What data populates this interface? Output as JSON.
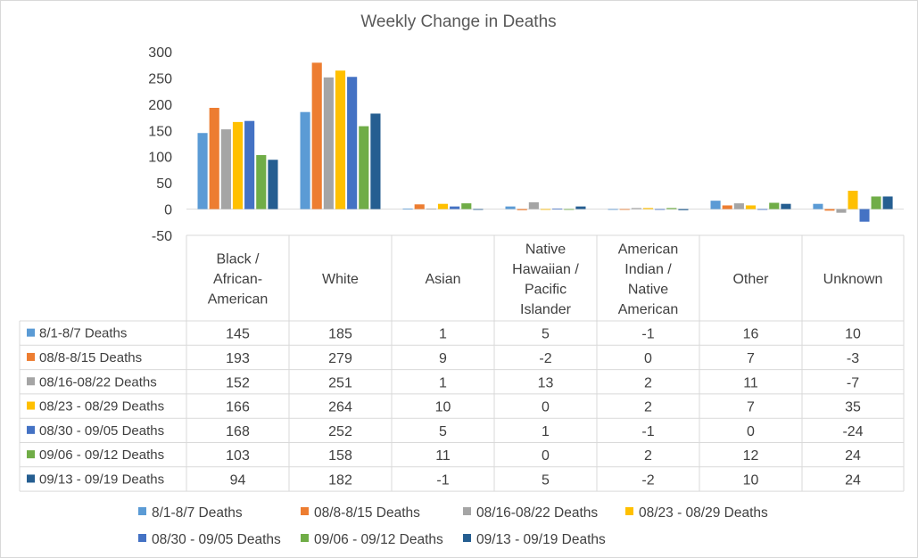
{
  "chart_data": {
    "type": "bar",
    "title": "Weekly Change in Deaths",
    "ylim": [
      -50,
      300
    ],
    "yticks": [
      -50,
      0,
      50,
      100,
      150,
      200,
      250,
      300
    ],
    "categories": [
      [
        "Black /",
        "African-",
        "American"
      ],
      [
        "White"
      ],
      [
        "Asian"
      ],
      [
        "Native",
        "Hawaiian /",
        "Pacific",
        "Islander"
      ],
      [
        "American",
        "Indian /",
        "Native",
        "American"
      ],
      [
        "Other"
      ],
      [
        "Unknown"
      ]
    ],
    "series": [
      {
        "name": "8/1-8/7 Deaths",
        "color": "#5B9BD5",
        "values": [
          145,
          185,
          1,
          5,
          -1,
          16,
          10
        ]
      },
      {
        "name": "08/8-8/15 Deaths",
        "color": "#ED7D31",
        "values": [
          193,
          279,
          9,
          -2,
          0,
          7,
          -3
        ]
      },
      {
        "name": "08/16-08/22 Deaths",
        "color": "#A5A5A5",
        "values": [
          152,
          251,
          1,
          13,
          2,
          11,
          -7
        ]
      },
      {
        "name": "08/23 - 08/29 Deaths",
        "color": "#FFC000",
        "values": [
          166,
          264,
          10,
          0,
          2,
          7,
          35
        ]
      },
      {
        "name": "08/30 - 09/05 Deaths",
        "color": "#4472C4",
        "values": [
          168,
          252,
          5,
          1,
          -1,
          0,
          -24
        ]
      },
      {
        "name": "09/06 - 09/12 Deaths",
        "color": "#70AD47",
        "values": [
          103,
          158,
          11,
          0,
          2,
          12,
          24
        ]
      },
      {
        "name": "09/13 - 09/19 Deaths",
        "color": "#255E91",
        "values": [
          94,
          182,
          -1,
          5,
          -2,
          10,
          24
        ]
      }
    ],
    "grid": false,
    "legend": "bottom",
    "data_table": true
  }
}
